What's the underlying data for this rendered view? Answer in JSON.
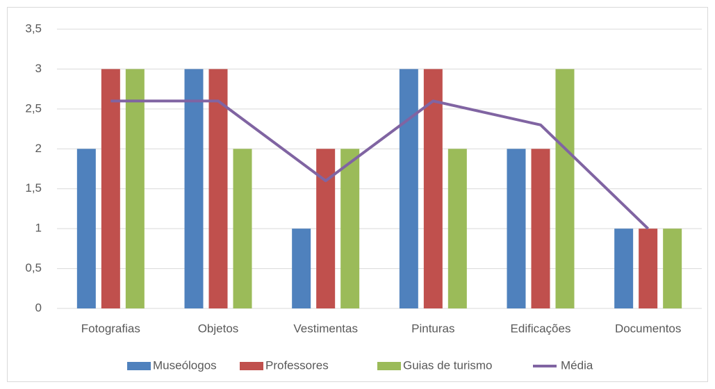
{
  "chart_data": {
    "type": "bar",
    "categories": [
      "Fotografias",
      "Objetos",
      "Vestimentas",
      "Pinturas",
      "Edificações",
      "Documentos"
    ],
    "series": [
      {
        "name": "Museólogos",
        "color": "#4f81bd",
        "values": [
          2,
          3,
          1,
          3,
          2,
          1
        ]
      },
      {
        "name": "Professores",
        "color": "#c0504d",
        "values": [
          3,
          3,
          2,
          3,
          2,
          1
        ]
      },
      {
        "name": "Guias de turismo",
        "color": "#9bbb59",
        "values": [
          3,
          2,
          2,
          2,
          3,
          1
        ]
      },
      {
        "name": "Média",
        "color": "#8064a2",
        "type": "line",
        "values": [
          2.6,
          2.6,
          1.6,
          2.6,
          2.3,
          1
        ]
      }
    ],
    "ylim": [
      0,
      3.5
    ],
    "yticks": [
      0,
      {
        "value": 0.5,
        "label": "0,5"
      },
      1,
      {
        "value": 1.5,
        "label": "1,5"
      },
      2,
      {
        "value": 2.5,
        "label": "2,5"
      },
      3,
      {
        "value": 3.5,
        "label": "3,5"
      }
    ],
    "grid": true,
    "legend": "bottom"
  }
}
